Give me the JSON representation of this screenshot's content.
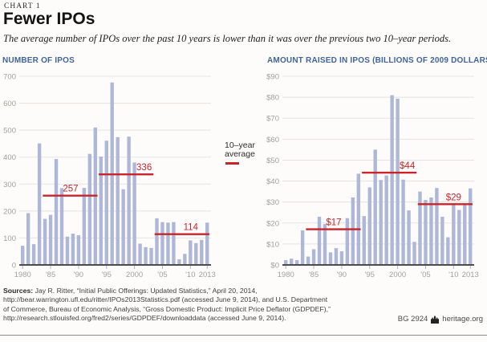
{
  "header": {
    "kicker": "CHART 1",
    "title": "Fewer IPOs",
    "subtitle": "The average number of IPOs over the past 10 years is lower than it was over the previous two 10–year periods."
  },
  "legend": {
    "line1": "10–year",
    "line2": "average"
  },
  "colors": {
    "bar": "#aeb7d8",
    "accent_red": "#c9232b",
    "title_blue": "#41639c",
    "axis_text": "#a3a099",
    "gridline": "#e6e3de",
    "baseline": "#4c4c4c",
    "tick": "#b9b6b0"
  },
  "chart_data": [
    {
      "type": "bar",
      "title": "NUMBER OF IPOS",
      "ylabel": "Number of IPOs",
      "years": [
        1980,
        1981,
        1982,
        1983,
        1984,
        1985,
        1986,
        1987,
        1988,
        1989,
        1990,
        1991,
        1992,
        1993,
        1994,
        1995,
        1996,
        1997,
        1998,
        1999,
        2000,
        2001,
        2002,
        2003,
        2004,
        2005,
        2006,
        2007,
        2008,
        2009,
        2010,
        2011,
        2012,
        2013
      ],
      "values": [
        71,
        192,
        77,
        451,
        171,
        186,
        393,
        285,
        105,
        116,
        110,
        286,
        412,
        510,
        402,
        461,
        677,
        474,
        281,
        476,
        380,
        79,
        66,
        63,
        173,
        159,
        157,
        159,
        21,
        41,
        91,
        81,
        93,
        157
      ],
      "ylim": [
        0,
        700
      ],
      "ytick_step": 100,
      "ytick_prefix": "",
      "grid": true,
      "xtick_labels": [
        "1980",
        "'85",
        "'90",
        "'95",
        "2000",
        "'05",
        "'10",
        "2013"
      ],
      "xtick_indices": [
        0,
        5,
        10,
        15,
        20,
        25,
        30,
        33
      ],
      "averages": [
        {
          "label": "257",
          "value": 257,
          "from": 1984,
          "to": 1993
        },
        {
          "label": "336",
          "value": 336,
          "from": 1994,
          "to": 2003
        },
        {
          "label": "114",
          "value": 114,
          "from": 2004,
          "to": 2013
        }
      ]
    },
    {
      "type": "bar",
      "title": "AMOUNT RAISED IN IPOS (BILLIONS OF 2009 DOLLARS)",
      "ylabel": "Amount raised, billions of 2009 dollars",
      "years": [
        1980,
        1981,
        1982,
        1983,
        1984,
        1985,
        1986,
        1987,
        1988,
        1989,
        1990,
        1991,
        1992,
        1993,
        1994,
        1995,
        1996,
        1997,
        1998,
        1999,
        2000,
        2001,
        2002,
        2003,
        2004,
        2005,
        2006,
        2007,
        2008,
        2009,
        2010,
        2011,
        2012,
        2013
      ],
      "values": [
        2.3,
        3,
        2.3,
        16.5,
        4,
        7.5,
        23,
        19.5,
        6,
        8,
        6.5,
        22.3,
        32.2,
        43.5,
        23.3,
        37,
        55,
        40.5,
        42.7,
        81,
        79.3,
        40.7,
        26,
        11,
        35,
        31,
        32.2,
        36.7,
        23,
        13.2,
        29,
        26.2,
        29.2,
        36.5
      ],
      "ylim": [
        0,
        90
      ],
      "ytick_step": 10,
      "ytick_prefix": "$",
      "grid": true,
      "xtick_labels": [
        "1980",
        "'85",
        "'90",
        "'95",
        "2000",
        "'05",
        "'10",
        "2013"
      ],
      "xtick_indices": [
        0,
        5,
        10,
        15,
        20,
        25,
        30,
        33
      ],
      "averages": [
        {
          "label": "$17",
          "value": 17,
          "from": 1984,
          "to": 1993
        },
        {
          "label": "$44",
          "value": 44,
          "from": 1994,
          "to": 2003
        },
        {
          "label": "$29",
          "value": 29,
          "from": 2004,
          "to": 2013
        }
      ]
    }
  ],
  "footer": {
    "sources_label": "Sources:",
    "source_lines": [
      " Jay R. Ritter, “Initial Public Offerings: Updated Statistics,” April 20, 2014,",
      "http://bear.warrington.ufl.edu/ritter/IPOs2013Statistics.pdf (accessed June 9, 2014), and U.S. Department",
      "of Commerce, Bureau of Economic Analysis, “Gross Domestic Product: Implicit Price Deflator (GDPDEF),”",
      "http://research.stlouisfed.org/fred2/series/GDPDEF/downloaddata (accessed June 9, 2014)."
    ],
    "doc_id": "BG 2924",
    "site": "heritage.org"
  }
}
